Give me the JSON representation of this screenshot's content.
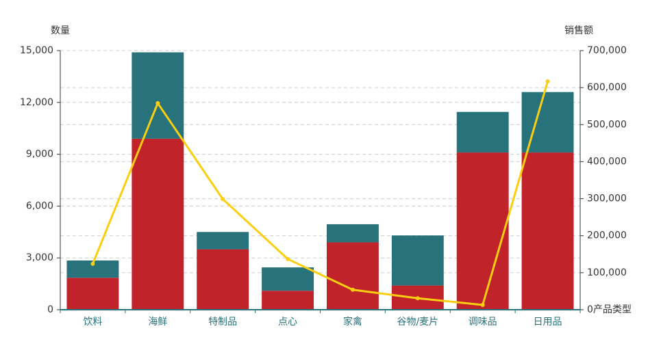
{
  "chart_data": {
    "type": "bar-line",
    "y_label": "数量",
    "y2_label": "销售额",
    "x_label": "产品类型",
    "categories": [
      "饮料",
      "海鲜",
      "特制品",
      "点心",
      "家禽",
      "谷物/麦片",
      "调味品",
      "日用品"
    ],
    "series": [
      {
        "type": "bar",
        "color": "#c1232b",
        "values": [
          1850,
          9900,
          3500,
          1100,
          3900,
          1400,
          9100,
          9100
        ]
      },
      {
        "type": "bar",
        "color": "#27727b",
        "values": [
          1000,
          5000,
          1000,
          1350,
          1050,
          2900,
          2350,
          3500
        ]
      },
      {
        "type": "line",
        "axis": "y2",
        "color": "#fcce10",
        "values": [
          124000,
          558000,
          299000,
          137000,
          54000,
          31000,
          13000,
          617000
        ]
      }
    ],
    "stacked": true,
    "ylim": [
      0,
      15000
    ],
    "yticks": [
      0,
      {
        "value": 3000,
        "label": "3,000"
      },
      {
        "value": 6000,
        "label": "6,000"
      },
      {
        "value": 9000,
        "label": "9,000"
      },
      {
        "value": 12000,
        "label": "12,000"
      },
      {
        "value": 15000,
        "label": "15,000"
      }
    ],
    "y2lim": [
      0,
      700000
    ],
    "y2ticks": [
      0,
      {
        "value": 100000,
        "label": "100,000"
      },
      {
        "value": 200000,
        "label": "200,000"
      },
      {
        "value": 300000,
        "label": "300,000"
      },
      {
        "value": 400000,
        "label": "400,000"
      },
      {
        "value": 500000,
        "label": "500,000"
      },
      {
        "value": 600000,
        "label": "600,000"
      },
      {
        "value": 700000,
        "label": "700,000"
      }
    ],
    "grid": true
  }
}
